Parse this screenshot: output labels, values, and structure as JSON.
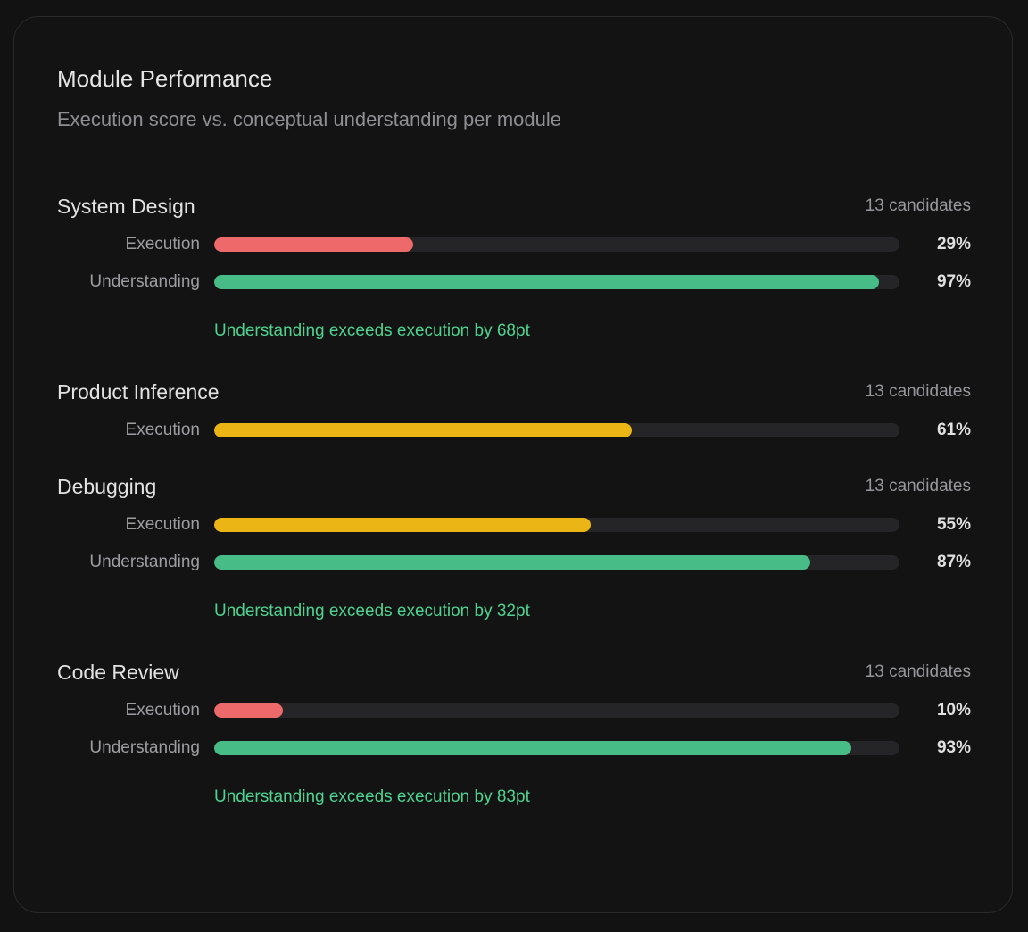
{
  "header": {
    "title": "Module Performance",
    "subtitle": "Execution score vs. conceptual understanding per module"
  },
  "colors": {
    "low": "#ee6a6a",
    "medium": "#ebb515",
    "high": "#48bc86",
    "track": "#252527",
    "note": "#4fd28f"
  },
  "chart_data": {
    "type": "bar",
    "orientation": "horizontal",
    "xlim": [
      0,
      100
    ],
    "unit": "%",
    "grid": false,
    "modules": [
      {
        "name": "System Design",
        "count_label": "13 candidates",
        "bars": [
          {
            "label": "Execution",
            "value": 29,
            "value_label": "29%",
            "color": "#ee6a6a"
          },
          {
            "label": "Understanding",
            "value": 97,
            "value_label": "97%",
            "color": "#48bc86"
          }
        ],
        "note": "Understanding exceeds execution by 68pt"
      },
      {
        "name": "Product Inference",
        "count_label": "13 candidates",
        "bars": [
          {
            "label": "Execution",
            "value": 61,
            "value_label": "61%",
            "color": "#ebb515"
          }
        ],
        "note": ""
      },
      {
        "name": "Debugging",
        "count_label": "13 candidates",
        "bars": [
          {
            "label": "Execution",
            "value": 55,
            "value_label": "55%",
            "color": "#ebb515"
          },
          {
            "label": "Understanding",
            "value": 87,
            "value_label": "87%",
            "color": "#48bc86"
          }
        ],
        "note": "Understanding exceeds execution by 32pt"
      },
      {
        "name": "Code Review",
        "count_label": "13 candidates",
        "bars": [
          {
            "label": "Execution",
            "value": 10,
            "value_label": "10%",
            "color": "#ee6a6a"
          },
          {
            "label": "Understanding",
            "value": 93,
            "value_label": "93%",
            "color": "#48bc86"
          }
        ],
        "note": "Understanding exceeds execution by 83pt"
      }
    ]
  }
}
